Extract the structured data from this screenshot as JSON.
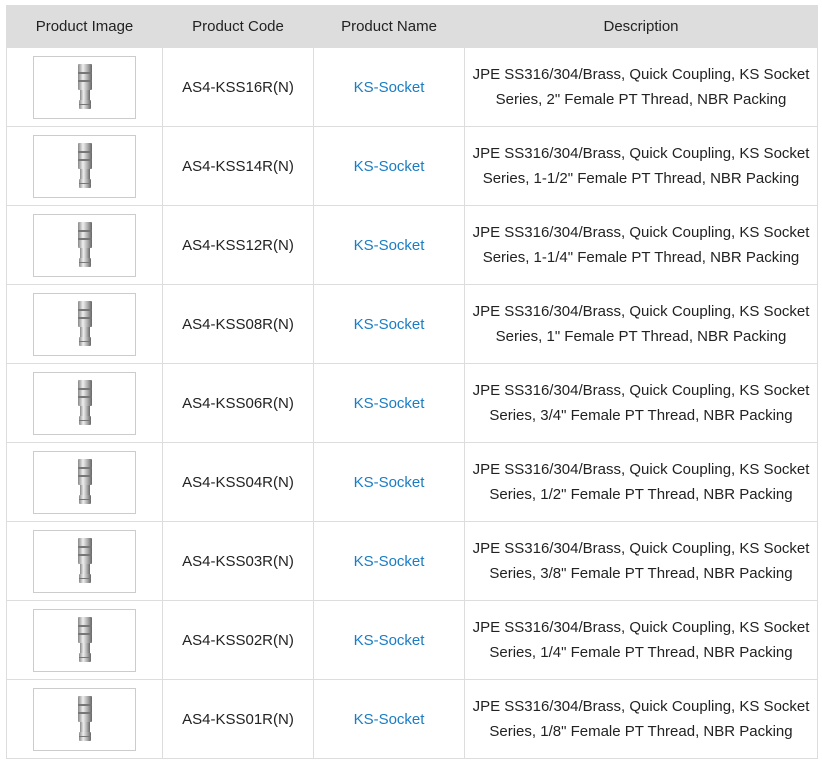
{
  "headers": [
    "Product Image",
    "Product Code",
    "Product Name",
    "Description"
  ],
  "rows": [
    {
      "code": "AS4-KSS16R(N)",
      "name": "KS-Socket",
      "desc": "JPE SS316/304/Brass, Quick Coupling, KS Socket Series, 2\" Female PT Thread, NBR Packing"
    },
    {
      "code": "AS4-KSS14R(N)",
      "name": "KS-Socket",
      "desc": "JPE SS316/304/Brass, Quick Coupling, KS Socket Series, 1-1/2\" Female PT Thread, NBR Packing"
    },
    {
      "code": "AS4-KSS12R(N)",
      "name": "KS-Socket",
      "desc": "JPE SS316/304/Brass, Quick Coupling, KS Socket Series, 1-1/4\" Female PT Thread, NBR Packing"
    },
    {
      "code": "AS4-KSS08R(N)",
      "name": "KS-Socket",
      "desc": "JPE SS316/304/Brass, Quick Coupling, KS Socket Series, 1\" Female PT Thread, NBR Packing"
    },
    {
      "code": "AS4-KSS06R(N)",
      "name": "KS-Socket",
      "desc": "JPE SS316/304/Brass, Quick Coupling, KS Socket Series, 3/4\" Female PT Thread, NBR Packing"
    },
    {
      "code": "AS4-KSS04R(N)",
      "name": "KS-Socket",
      "desc": "JPE SS316/304/Brass, Quick Coupling, KS Socket Series, 1/2\" Female PT Thread, NBR Packing"
    },
    {
      "code": "AS4-KSS03R(N)",
      "name": "KS-Socket",
      "desc": "JPE SS316/304/Brass, Quick Coupling, KS Socket Series, 3/8\" Female PT Thread, NBR Packing"
    },
    {
      "code": "AS4-KSS02R(N)",
      "name": "KS-Socket",
      "desc": "JPE SS316/304/Brass, Quick Coupling, KS Socket Series, 1/4\" Female PT Thread, NBR Packing"
    },
    {
      "code": "AS4-KSS01R(N)",
      "name": "KS-Socket",
      "desc": "JPE SS316/304/Brass, Quick Coupling, KS Socket Series, 1/8\" Female PT Thread, NBR Packing"
    }
  ],
  "colors": {
    "header_bg": "#dddddd",
    "link": "#1a7dc4"
  }
}
